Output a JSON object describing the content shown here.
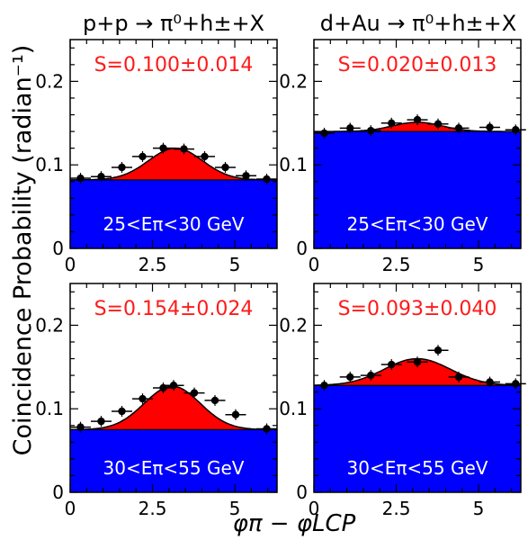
{
  "figure": {
    "y_axis_label": "Coincidence Probability (radian⁻¹)",
    "x_axis_label": "φπ − φLCP",
    "column_titles": [
      "p+p → π⁰+h±+X",
      "d+Au → π⁰+h±+X"
    ]
  },
  "chart_data": [
    {
      "type": "scatter",
      "panel": "p+p, 25<Eπ<30 GeV",
      "annotation": "S=0.100±0.014",
      "bin_label": "25<Eπ<30 GeV",
      "xlim": [
        0,
        6.283
      ],
      "ylim": [
        0,
        0.25
      ],
      "xticks": [
        0,
        2.5,
        5
      ],
      "yticks": [
        0,
        0.1,
        0.2
      ],
      "pedestal": 0.082,
      "gauss": {
        "amp": 0.038,
        "mean": 3.2,
        "sigma": 0.82
      },
      "x": [
        0.314,
        0.942,
        1.571,
        2.199,
        2.827,
        3.456,
        4.084,
        4.712,
        5.341,
        5.969
      ],
      "y": [
        0.084,
        0.086,
        0.097,
        0.11,
        0.12,
        0.119,
        0.11,
        0.097,
        0.087,
        0.083
      ],
      "colors": {
        "pedestal": "#0000ff",
        "signal": "#ff0000"
      }
    },
    {
      "type": "scatter",
      "panel": "d+Au, 25<Eπ<30 GeV",
      "annotation": "S=0.020±0.013",
      "bin_label": "25<Eπ<30 GeV",
      "xlim": [
        0,
        6.283
      ],
      "ylim": [
        0,
        0.25
      ],
      "xticks": [
        0,
        2.5,
        5
      ],
      "yticks": [
        0,
        0.1,
        0.2
      ],
      "pedestal": 0.14,
      "gauss": {
        "amp": 0.011,
        "mean": 3.14,
        "sigma": 0.75
      },
      "x": [
        0.314,
        1.099,
        1.728,
        2.356,
        3.142,
        3.77,
        4.398,
        5.341,
        6.126
      ],
      "y": [
        0.138,
        0.144,
        0.141,
        0.15,
        0.154,
        0.149,
        0.144,
        0.145,
        0.142
      ],
      "colors": {
        "pedestal": "#0000ff",
        "signal": "#ff0000"
      }
    },
    {
      "type": "scatter",
      "panel": "p+p, 30<Eπ<55 GeV",
      "annotation": "S=0.154±0.024",
      "bin_label": "30<Eπ<55 GeV",
      "xlim": [
        0,
        6.283
      ],
      "ylim": [
        0,
        0.25
      ],
      "xticks": [
        0,
        2.5,
        5
      ],
      "yticks": [
        0,
        0.1,
        0.2
      ],
      "pedestal": 0.075,
      "gauss": {
        "amp": 0.052,
        "mean": 3.1,
        "sigma": 0.85
      },
      "x": [
        0.314,
        0.942,
        1.571,
        2.199,
        2.827,
        3.142,
        3.77,
        4.398,
        5.026,
        5.969
      ],
      "y": [
        0.078,
        0.085,
        0.097,
        0.112,
        0.125,
        0.128,
        0.119,
        0.11,
        0.093,
        0.076
      ],
      "colors": {
        "pedestal": "#0000ff",
        "signal": "#ff0000"
      }
    },
    {
      "type": "scatter",
      "panel": "d+Au, 30<Eπ<55 GeV",
      "annotation": "S=0.093±0.040",
      "bin_label": "30<Eπ<55 GeV",
      "xlim": [
        0,
        6.283
      ],
      "ylim": [
        0,
        0.25
      ],
      "xticks": [
        0,
        2.5,
        5
      ],
      "yticks": [
        0,
        0.1,
        0.2
      ],
      "pedestal": 0.128,
      "gauss": {
        "amp": 0.032,
        "mean": 3.14,
        "sigma": 1.0
      },
      "x": [
        0.314,
        1.099,
        1.728,
        2.356,
        3.142,
        3.77,
        4.398,
        5.341,
        6.126
      ],
      "y": [
        0.128,
        0.138,
        0.14,
        0.153,
        0.156,
        0.17,
        0.138,
        0.132,
        0.13
      ],
      "colors": {
        "pedestal": "#0000ff",
        "signal": "#ff0000"
      }
    }
  ]
}
